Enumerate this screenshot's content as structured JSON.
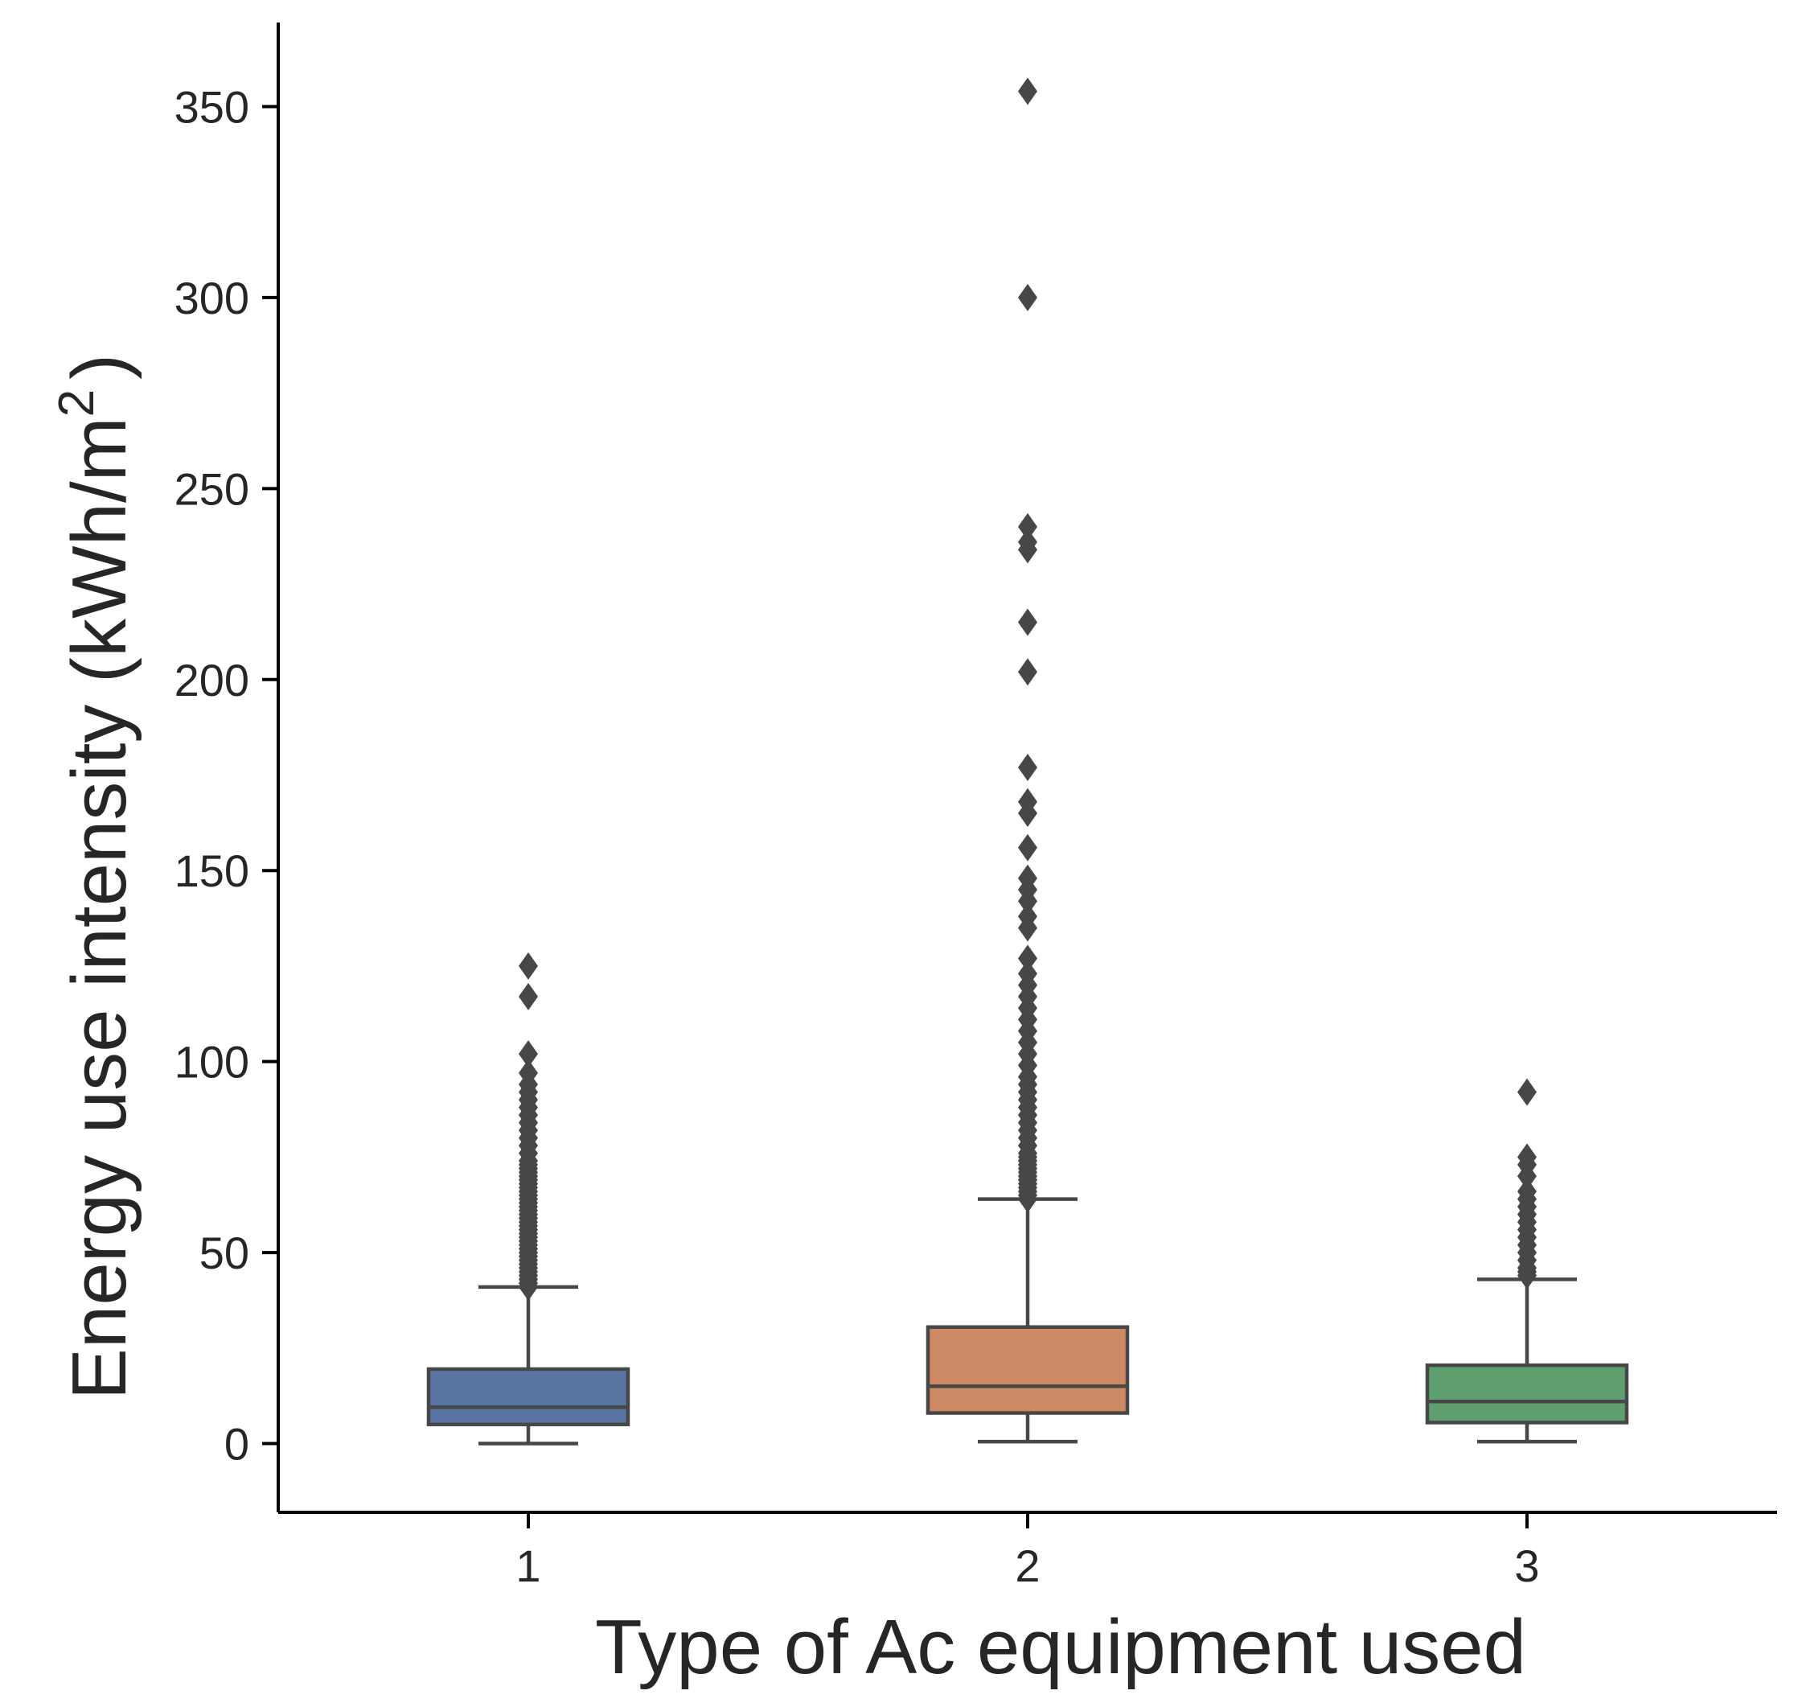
{
  "chart_data": {
    "type": "box",
    "xlabel": "Type of Ac equipment used",
    "ylabel": {
      "main": "Energy use intensity (kWh/m",
      "superscript": "2",
      "close": ")"
    },
    "categories": [
      "1",
      "2",
      "3"
    ],
    "ylim": [
      -18,
      372
    ],
    "yticks": [
      0,
      50,
      100,
      150,
      200,
      250,
      300,
      350
    ],
    "grid": false,
    "legend": "none",
    "line_color": "#474747",
    "boxes": [
      {
        "category": "1",
        "color": "#5875a4",
        "whisker_low": 0,
        "q1": 5,
        "median": 9.5,
        "q3": 19.5,
        "whisker_high": 41,
        "outliers": [
          41,
          42,
          43,
          44,
          45,
          46,
          47,
          48,
          49,
          50,
          51,
          52,
          53,
          54,
          55,
          56,
          57,
          58,
          59,
          60,
          61,
          62,
          63,
          64,
          65,
          66,
          67,
          68,
          69,
          70,
          71,
          72,
          73,
          74,
          76,
          78,
          80,
          82,
          84,
          86,
          88,
          90,
          92,
          94,
          97,
          102,
          117,
          125
        ]
      },
      {
        "category": "2",
        "color": "#cc8963",
        "whisker_low": 0.5,
        "q1": 8,
        "median": 15,
        "q3": 30.5,
        "whisker_high": 64,
        "outliers": [
          64,
          65,
          66,
          67,
          68,
          69,
          70,
          71,
          72,
          73,
          74,
          75,
          76,
          78,
          80,
          82,
          84,
          86,
          88,
          90,
          92,
          94,
          96,
          99,
          102,
          105,
          108,
          111,
          114,
          117,
          120,
          123,
          127,
          135,
          138,
          142,
          145,
          148,
          156,
          165,
          168,
          177,
          202,
          215,
          234,
          236,
          240,
          300,
          354
        ]
      },
      {
        "category": "3",
        "color": "#5f9e6e",
        "whisker_low": 0.5,
        "q1": 5.5,
        "median": 11,
        "q3": 20.5,
        "whisker_high": 43,
        "outliers": [
          44,
          45,
          46,
          48,
          50,
          52,
          54,
          56,
          58,
          60,
          62,
          64,
          66,
          70,
          73,
          75,
          92
        ]
      }
    ]
  }
}
